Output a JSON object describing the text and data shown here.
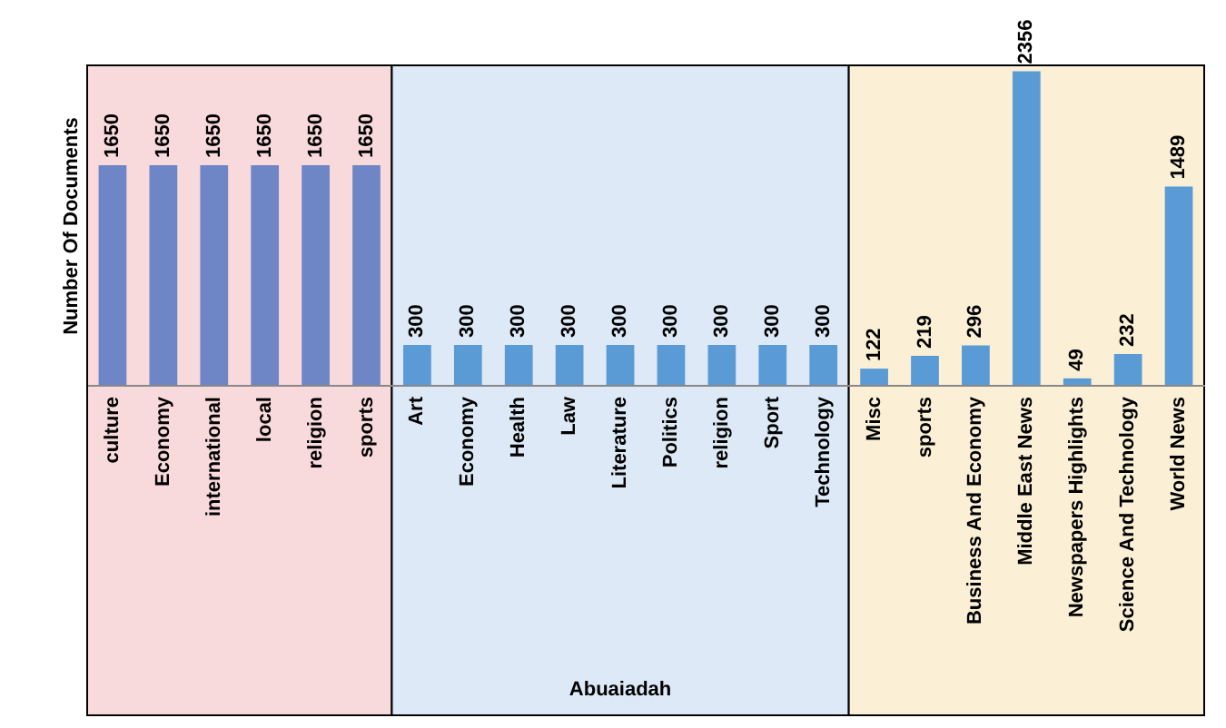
{
  "chart_data": {
    "type": "bar",
    "ylabel": "Number Of Documents",
    "categories": [
      "culture",
      "Economy",
      "international",
      "local",
      "religion",
      "sports",
      "Art",
      "Economy",
      "Health",
      "Law",
      "Literature",
      "Politics",
      "religion",
      "Sport",
      "Technology",
      "Misc",
      "sports",
      "Business And Economy",
      "Middle East News",
      "Newspapers Highlights",
      "Science And Technology",
      "World News"
    ],
    "values": [
      1650,
      1650,
      1650,
      1650,
      1650,
      1650,
      300,
      300,
      300,
      300,
      300,
      300,
      300,
      300,
      300,
      122,
      219,
      296,
      2356,
      49,
      232,
      1489
    ],
    "colors": [
      "#6f86c6",
      "#6f86c6",
      "#6f86c6",
      "#6f86c6",
      "#6f86c6",
      "#6f86c6",
      "#5b9bd5",
      "#5b9bd5",
      "#5b9bd5",
      "#5b9bd5",
      "#5b9bd5",
      "#5b9bd5",
      "#5b9bd5",
      "#5b9bd5",
      "#5b9bd5",
      "#5b9bd5",
      "#5b9bd5",
      "#5b9bd5",
      "#5b9bd5",
      "#5b9bd5",
      "#5b9bd5",
      "#5b9bd5"
    ],
    "data_labels": true,
    "bands": [
      {
        "axis": "x",
        "from": "culture",
        "to": "sports",
        "color": "#f9dadc"
      },
      {
        "axis": "x",
        "from": "Art",
        "to": "Technology",
        "label": "Abuaiadah",
        "color": "#dde9f6"
      },
      {
        "axis": "x",
        "from": "Misc",
        "to": "World News",
        "color": "#fbf0d6"
      }
    ]
  }
}
